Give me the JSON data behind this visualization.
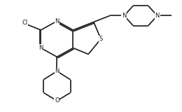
{
  "bg_color": "#ffffff",
  "line_color": "#1a1a1a",
  "lw": 1.2,
  "figsize": [
    2.6,
    1.6
  ],
  "dpi": 100,
  "xlim": [
    0,
    10
  ],
  "ylim": [
    0,
    6.2
  ]
}
